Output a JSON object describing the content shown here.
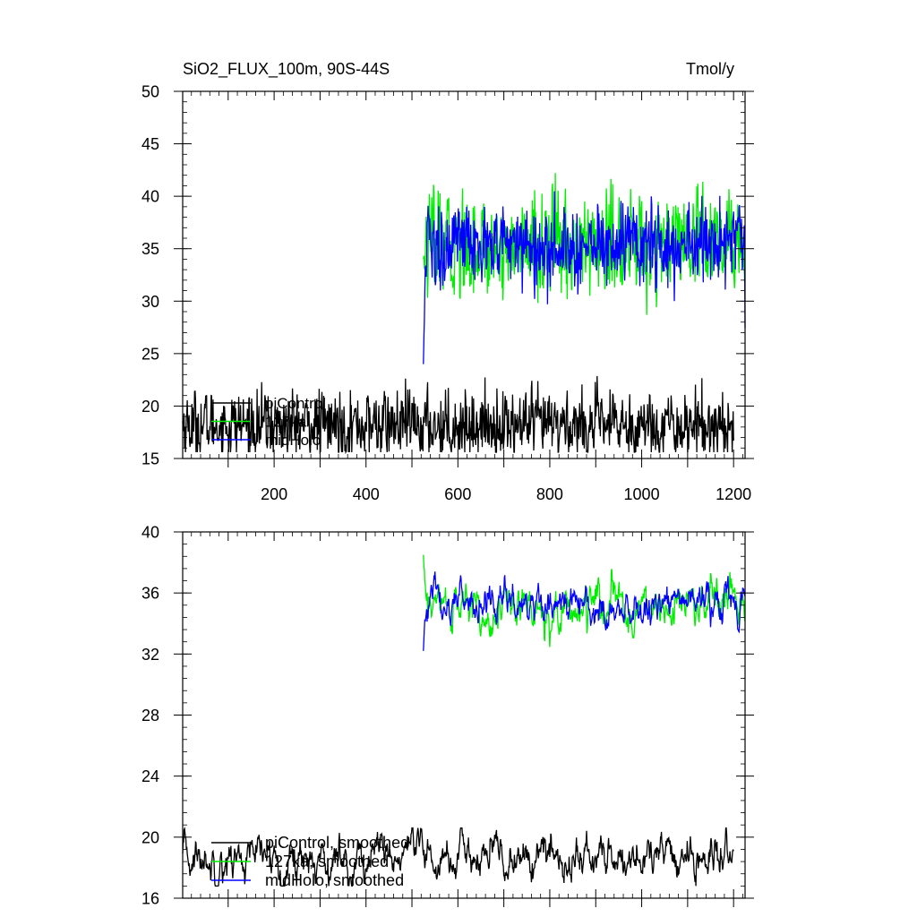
{
  "chart_data": [
    {
      "type": "line",
      "title": "SiO2_FLUX_100m, 90S-44S",
      "units": "Tmol/y",
      "xlim": [
        1,
        1225
      ],
      "ylim": [
        15,
        50
      ],
      "x_ticks": [
        200,
        400,
        600,
        800,
        1000,
        1200
      ],
      "y_ticks": [
        15,
        20,
        25,
        30,
        35,
        40,
        45,
        50
      ],
      "legend_position": "lower-left",
      "series": [
        {
          "name": "piControl",
          "color": "#000000",
          "x_start": 1,
          "x_end": 1200,
          "mean": 18.2,
          "spread": 1.6,
          "min_seen": 15.6,
          "max_seen": 23.6
        },
        {
          "name": "127ka",
          "color": "#00ee00",
          "x_start": 525,
          "x_end": 1225,
          "start_value": 34,
          "mean": 35.2,
          "spread": 2.4,
          "min_seen": 27.9,
          "max_seen": 45.8
        },
        {
          "name": "midHolo",
          "color": "#0000ff",
          "x_start": 525,
          "x_end": 1225,
          "start_value": 24,
          "mean": 35.3,
          "spread": 2.0,
          "min_seen": 24.0,
          "max_seen": 42.5
        }
      ]
    },
    {
      "type": "line",
      "xlim": [
        1,
        1225
      ],
      "ylim": [
        16,
        40
      ],
      "x_ticks": [
        200,
        400,
        600,
        800,
        1000,
        1200
      ],
      "y_ticks": [
        16,
        20,
        24,
        28,
        32,
        36,
        40
      ],
      "legend_position": "lower-left",
      "series": [
        {
          "name": "piControl, smoothed",
          "color": "#000000",
          "x_start": 1,
          "x_end": 1200,
          "mean": 18.6,
          "spread": 0.75,
          "min_seen": 16.8,
          "max_seen": 20.6
        },
        {
          "name": "127ka, smoothed",
          "color": "#00ee00",
          "x_start": 525,
          "x_end": 1225,
          "start_value": 38.5,
          "mean": 35.0,
          "spread": 0.8,
          "min_seen": 32.4,
          "max_seen": 38.7
        },
        {
          "name": "midHolo, smoothed",
          "color": "#0000ff",
          "x_start": 525,
          "x_end": 1225,
          "start_value": 32.2,
          "mean": 35.3,
          "spread": 0.7,
          "min_seen": 32.2,
          "max_seen": 38.3
        }
      ]
    }
  ]
}
